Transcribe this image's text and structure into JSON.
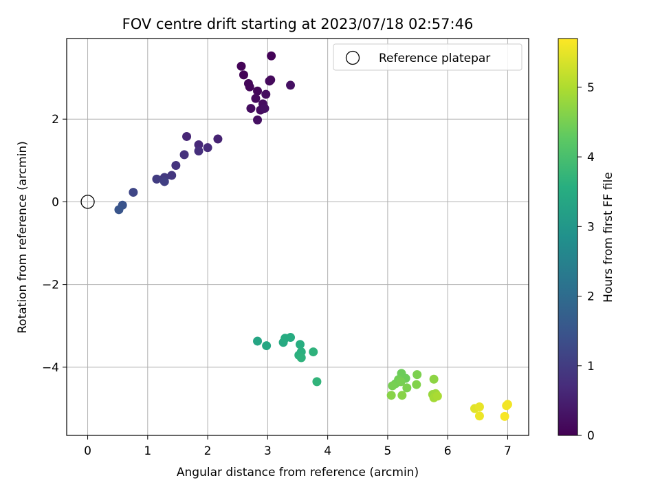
{
  "chart_data": {
    "type": "scatter",
    "title": "FOV centre drift starting at 2023/07/18 02:57:46",
    "xlabel": "Angular distance from reference (arcmin)",
    "ylabel": "Rotation from reference (arcmin)",
    "xlim": [
      -0.35,
      7.35
    ],
    "ylim": [
      -5.65,
      3.95
    ],
    "xticks": [
      0,
      1,
      2,
      3,
      4,
      5,
      6,
      7
    ],
    "yticks": [
      -4,
      -2,
      0,
      2
    ],
    "grid": true,
    "legend": {
      "placement": "top-right",
      "entries": [
        "Reference platepar"
      ]
    },
    "reference_point": {
      "x": 0,
      "y": 0
    },
    "colorbar": {
      "label": "Hours from first FF file",
      "colormap": "viridis",
      "range": [
        0,
        5.7
      ],
      "ticks": [
        0,
        1,
        2,
        3,
        4,
        5
      ]
    },
    "points": [
      {
        "x": 2.56,
        "y": 3.28,
        "t": 0.05
      },
      {
        "x": 2.6,
        "y": 3.07,
        "t": 0.05
      },
      {
        "x": 3.06,
        "y": 3.53,
        "t": 0.05
      },
      {
        "x": 2.68,
        "y": 2.86,
        "t": 0.1
      },
      {
        "x": 2.7,
        "y": 2.78,
        "t": 0.1
      },
      {
        "x": 2.83,
        "y": 2.68,
        "t": 0.1
      },
      {
        "x": 2.8,
        "y": 2.5,
        "t": 0.15
      },
      {
        "x": 3.05,
        "y": 2.95,
        "t": 0.15
      },
      {
        "x": 3.03,
        "y": 2.92,
        "t": 0.15
      },
      {
        "x": 2.97,
        "y": 2.6,
        "t": 0.2
      },
      {
        "x": 2.92,
        "y": 2.37,
        "t": 0.2
      },
      {
        "x": 2.72,
        "y": 2.26,
        "t": 0.2
      },
      {
        "x": 2.88,
        "y": 2.22,
        "t": 0.2
      },
      {
        "x": 2.95,
        "y": 2.26,
        "t": 0.25
      },
      {
        "x": 2.83,
        "y": 1.98,
        "t": 0.25
      },
      {
        "x": 3.38,
        "y": 2.82,
        "t": 0.25
      },
      {
        "x": 2.17,
        "y": 1.52,
        "t": 0.55
      },
      {
        "x": 1.65,
        "y": 1.58,
        "t": 0.6
      },
      {
        "x": 1.85,
        "y": 1.38,
        "t": 0.65
      },
      {
        "x": 2.0,
        "y": 1.31,
        "t": 0.7
      },
      {
        "x": 1.85,
        "y": 1.23,
        "t": 0.75
      },
      {
        "x": 1.61,
        "y": 1.14,
        "t": 0.8
      },
      {
        "x": 1.47,
        "y": 0.88,
        "t": 0.85
      },
      {
        "x": 1.4,
        "y": 0.64,
        "t": 0.9
      },
      {
        "x": 1.28,
        "y": 0.59,
        "t": 0.95
      },
      {
        "x": 1.15,
        "y": 0.55,
        "t": 1.0
      },
      {
        "x": 1.28,
        "y": 0.49,
        "t": 1.05
      },
      {
        "x": 0.76,
        "y": 0.23,
        "t": 1.2
      },
      {
        "x": 0.58,
        "y": -0.08,
        "t": 1.45
      },
      {
        "x": 0.52,
        "y": -0.19,
        "t": 1.5
      },
      {
        "x": 2.83,
        "y": -3.37,
        "t": 3.35
      },
      {
        "x": 2.98,
        "y": -3.48,
        "t": 3.4
      },
      {
        "x": 3.26,
        "y": -3.4,
        "t": 3.45
      },
      {
        "x": 3.29,
        "y": -3.3,
        "t": 3.5
      },
      {
        "x": 3.38,
        "y": -3.28,
        "t": 3.5
      },
      {
        "x": 3.54,
        "y": -3.45,
        "t": 3.55
      },
      {
        "x": 3.56,
        "y": -3.63,
        "t": 3.6
      },
      {
        "x": 3.52,
        "y": -3.71,
        "t": 3.6
      },
      {
        "x": 3.56,
        "y": -3.77,
        "t": 3.65
      },
      {
        "x": 3.76,
        "y": -3.63,
        "t": 3.65
      },
      {
        "x": 3.82,
        "y": -4.35,
        "t": 3.7
      },
      {
        "x": 5.23,
        "y": -4.15,
        "t": 4.4
      },
      {
        "x": 5.3,
        "y": -4.27,
        "t": 4.4
      },
      {
        "x": 5.18,
        "y": -4.3,
        "t": 4.45
      },
      {
        "x": 5.13,
        "y": -4.4,
        "t": 4.45
      },
      {
        "x": 5.08,
        "y": -4.45,
        "t": 4.5
      },
      {
        "x": 5.22,
        "y": -4.35,
        "t": 4.5
      },
      {
        "x": 5.32,
        "y": -4.5,
        "t": 4.55
      },
      {
        "x": 5.49,
        "y": -4.18,
        "t": 4.55
      },
      {
        "x": 5.48,
        "y": -4.42,
        "t": 4.6
      },
      {
        "x": 5.06,
        "y": -4.68,
        "t": 4.65
      },
      {
        "x": 5.24,
        "y": -4.68,
        "t": 4.65
      },
      {
        "x": 5.77,
        "y": -4.29,
        "t": 4.7
      },
      {
        "x": 5.75,
        "y": -4.66,
        "t": 4.8
      },
      {
        "x": 5.8,
        "y": -4.64,
        "t": 4.85
      },
      {
        "x": 5.77,
        "y": -4.74,
        "t": 4.9
      },
      {
        "x": 5.83,
        "y": -4.7,
        "t": 4.95
      },
      {
        "x": 6.45,
        "y": -5.0,
        "t": 5.45
      },
      {
        "x": 6.53,
        "y": -4.96,
        "t": 5.5
      },
      {
        "x": 6.53,
        "y": -5.18,
        "t": 5.55
      },
      {
        "x": 7.0,
        "y": -4.9,
        "t": 5.6
      },
      {
        "x": 6.98,
        "y": -4.93,
        "t": 5.6
      },
      {
        "x": 6.95,
        "y": -5.19,
        "t": 5.65
      }
    ]
  }
}
